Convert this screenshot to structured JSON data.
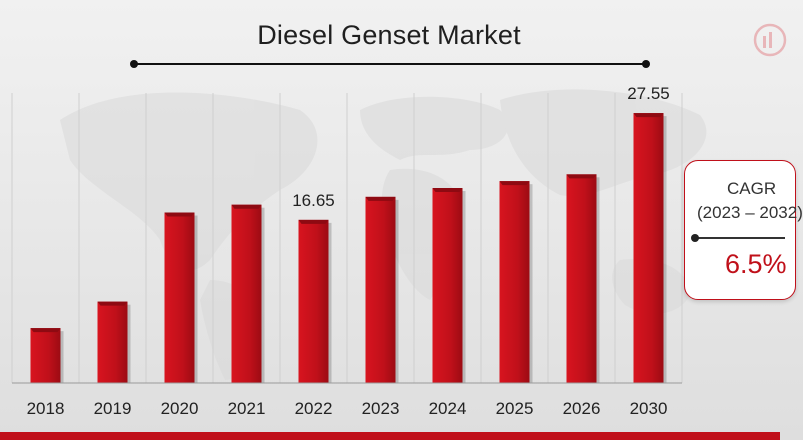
{
  "chart_data": {
    "type": "bar",
    "title": "Diesel Genset Market",
    "categories": [
      "2018",
      "2019",
      "2020",
      "2021",
      "2022",
      "2023",
      "2024",
      "2025",
      "2026",
      "2030"
    ],
    "values": [
      5.6,
      8.3,
      17.4,
      18.2,
      16.65,
      19.0,
      19.9,
      20.6,
      21.3,
      27.55
    ],
    "data_labels": {
      "2022": "16.65",
      "2030": "27.55"
    },
    "grid": "vertical",
    "legend": "none",
    "colors": {
      "bar": "#c0101a",
      "bar_dark": "#8e0a12",
      "accent": "#c0101a"
    }
  },
  "cagr": {
    "label": "CAGR",
    "period": "(2023 – 2032)",
    "value": "6.5%"
  },
  "icons": {
    "logo": "brand-logo-icon"
  }
}
